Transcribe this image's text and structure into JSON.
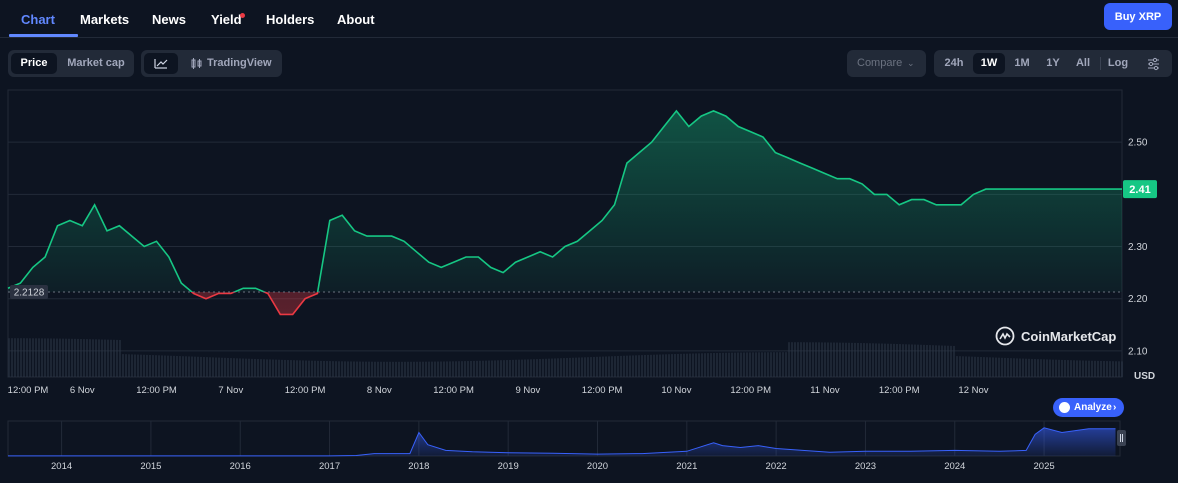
{
  "nav": {
    "tabs": [
      {
        "label": "Chart"
      },
      {
        "label": "Markets"
      },
      {
        "label": "News"
      },
      {
        "label": "Yield"
      },
      {
        "label": "Holders"
      },
      {
        "label": "About"
      }
    ],
    "buy_label": "Buy XRP"
  },
  "controls": {
    "price_label": "Price",
    "market_cap_label": "Market cap",
    "tradingview_label": "TradingView",
    "compare_label": "Compare",
    "ranges": [
      "24h",
      "1W",
      "1M",
      "1Y",
      "All"
    ],
    "selected_range": "1W",
    "log_label": "Log"
  },
  "analyze_label": "Analyze",
  "watermark": "CoinMarketCap",
  "colors": {
    "up": "#16c784",
    "down": "#ea3943",
    "accent": "#3861fb"
  },
  "chart_data": [
    {
      "type": "area",
      "ylim": [
        2.05,
        2.6
      ],
      "yticks": [
        2.1,
        2.2,
        2.3,
        2.4,
        2.5
      ],
      "yunit": "USD",
      "baseline_price": 2.2128,
      "baseline_label": "2.2128",
      "current_price_label": "2.41",
      "x_tick_labels": [
        "12:00 PM",
        "6 Nov",
        "12:00 PM",
        "7 Nov",
        "12:00 PM",
        "8 Nov",
        "12:00 PM",
        "9 Nov",
        "12:00 PM",
        "10 Nov",
        "12:00 PM",
        "11 Nov",
        "12:00 PM",
        "12 Nov"
      ],
      "x_range_hours": [
        0,
        180
      ],
      "x_tick_hours": [
        0,
        12,
        24,
        36,
        48,
        60,
        72,
        84,
        96,
        108,
        120,
        132,
        144,
        156
      ],
      "series": [
        {
          "x_hours": [
            0,
            2,
            4,
            6,
            8,
            10,
            12,
            14,
            16,
            18,
            20,
            22,
            24,
            26,
            28,
            30,
            32,
            34,
            36,
            38,
            40,
            42,
            44,
            46,
            48,
            50,
            52,
            54,
            56,
            58,
            60,
            62,
            64,
            66,
            68,
            70,
            72,
            74,
            76,
            78,
            80,
            82,
            84,
            86,
            88,
            90,
            92,
            94,
            96,
            98,
            100,
            102,
            104,
            106,
            108,
            110,
            112,
            114,
            116,
            118,
            120,
            122,
            124,
            126,
            128,
            130,
            132,
            134,
            136,
            138,
            140,
            142,
            144,
            146,
            148,
            150,
            152,
            154,
            156,
            158,
            160,
            162,
            164,
            166,
            168,
            170,
            172,
            174,
            176,
            178,
            180
          ],
          "values": [
            2.22,
            2.23,
            2.26,
            2.28,
            2.34,
            2.35,
            2.34,
            2.38,
            2.33,
            2.34,
            2.32,
            2.3,
            2.31,
            2.28,
            2.23,
            2.21,
            2.2,
            2.21,
            2.21,
            2.22,
            2.22,
            2.21,
            2.17,
            2.17,
            2.2,
            2.21,
            2.35,
            2.36,
            2.33,
            2.32,
            2.32,
            2.32,
            2.31,
            2.29,
            2.27,
            2.26,
            2.27,
            2.28,
            2.28,
            2.26,
            2.25,
            2.27,
            2.28,
            2.29,
            2.28,
            2.3,
            2.31,
            2.33,
            2.35,
            2.38,
            2.46,
            2.48,
            2.5,
            2.53,
            2.56,
            2.53,
            2.55,
            2.56,
            2.55,
            2.53,
            2.52,
            2.51,
            2.48,
            2.47,
            2.46,
            2.45,
            2.44,
            2.43,
            2.43,
            2.42,
            2.4,
            2.4,
            2.38,
            2.39,
            2.39,
            2.38,
            2.38,
            2.38,
            2.4,
            2.41,
            2.41,
            2.41,
            2.41,
            2.41,
            2.41,
            2.41,
            2.41,
            2.41,
            2.41,
            2.41,
            2.41
          ]
        }
      ]
    },
    {
      "type": "area",
      "x_tick_labels": [
        "2014",
        "2015",
        "2016",
        "2017",
        "2018",
        "2019",
        "2020",
        "2021",
        "2022",
        "2023",
        "2024",
        "2025"
      ],
      "x": [
        2013.4,
        2014,
        2015,
        2016,
        2017,
        2017.3,
        2017.5,
        2017.9,
        2018.0,
        2018.1,
        2018.3,
        2018.6,
        2019,
        2019.5,
        2020,
        2020.5,
        2021,
        2021.3,
        2021.4,
        2021.6,
        2021.8,
        2022,
        2022.3,
        2022.6,
        2023,
        2023.5,
        2024,
        2024.5,
        2024.8,
        2024.9,
        2025,
        2025.2,
        2025.5,
        2025.8
      ],
      "values": [
        0.01,
        0.006,
        0.006,
        0.007,
        0.008,
        0.05,
        0.25,
        0.25,
        2.5,
        1.2,
        0.6,
        0.45,
        0.35,
        0.3,
        0.2,
        0.25,
        0.5,
        1.4,
        1.1,
        0.9,
        1.1,
        0.8,
        0.6,
        0.4,
        0.5,
        0.5,
        0.6,
        0.5,
        0.6,
        2.3,
        3.0,
        2.5,
        2.9,
        2.9
      ],
      "ylim": [
        0,
        3.4
      ]
    }
  ]
}
